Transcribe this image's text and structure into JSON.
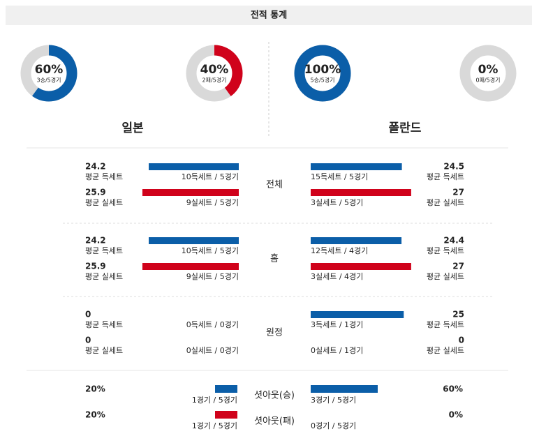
{
  "header": {
    "title": "전적 통계"
  },
  "colors": {
    "win": "#0b5ea8",
    "loss": "#d0021b",
    "track": "#d9d9d9"
  },
  "teams": [
    {
      "name": "일본",
      "win": {
        "pct": 60,
        "label": "60%",
        "record": "3승/5경기"
      },
      "loss": {
        "pct": 40,
        "label": "40%",
        "record": "2패/5경기"
      }
    },
    {
      "name": "폴란드",
      "win": {
        "pct": 100,
        "label": "100%",
        "record": "5승/5경기"
      },
      "loss": {
        "pct": 0,
        "label": "0%",
        "record": "0패/5경기"
      }
    }
  ],
  "stat_labels": {
    "scored": "평균 득세트",
    "conceded": "평균 실세트"
  },
  "sections": [
    {
      "name": "전체",
      "teams": [
        {
          "scored": 24.2,
          "scored_detail": "10득세트 / 5경기",
          "conceded": 25.9,
          "conceded_detail": "9실세트 / 5경기"
        },
        {
          "scored": 24.5,
          "scored_detail": "15득세트 / 5경기",
          "conceded": 27,
          "conceded_detail": "3실세트 / 5경기"
        }
      ]
    },
    {
      "name": "홈",
      "teams": [
        {
          "scored": 24.2,
          "scored_detail": "10득세트 / 5경기",
          "conceded": 25.9,
          "conceded_detail": "9실세트 / 5경기"
        },
        {
          "scored": 24.4,
          "scored_detail": "12득세트 / 4경기",
          "conceded": 27,
          "conceded_detail": "3실세트 / 4경기"
        }
      ]
    },
    {
      "name": "원정",
      "teams": [
        {
          "scored": 0,
          "scored_detail": "0득세트 / 0경기",
          "conceded": 0,
          "conceded_detail": "0실세트 / 0경기"
        },
        {
          "scored": 25,
          "scored_detail": "3득세트 / 1경기",
          "conceded": 0,
          "conceded_detail": "0실세트 / 1경기"
        }
      ]
    }
  ],
  "shutouts": [
    {
      "name": "셧아웃(승)",
      "teams": [
        {
          "pct": 20,
          "label": "20%",
          "detail": "1경기 / 5경기"
        },
        {
          "pct": 60,
          "label": "60%",
          "detail": "3경기 / 5경기"
        }
      ]
    },
    {
      "name": "셧아웃(패)",
      "teams": [
        {
          "pct": 20,
          "label": "20%",
          "detail": "1경기 / 5경기"
        },
        {
          "pct": 0,
          "label": "0%",
          "detail": "0경기 / 5경기"
        }
      ]
    }
  ]
}
